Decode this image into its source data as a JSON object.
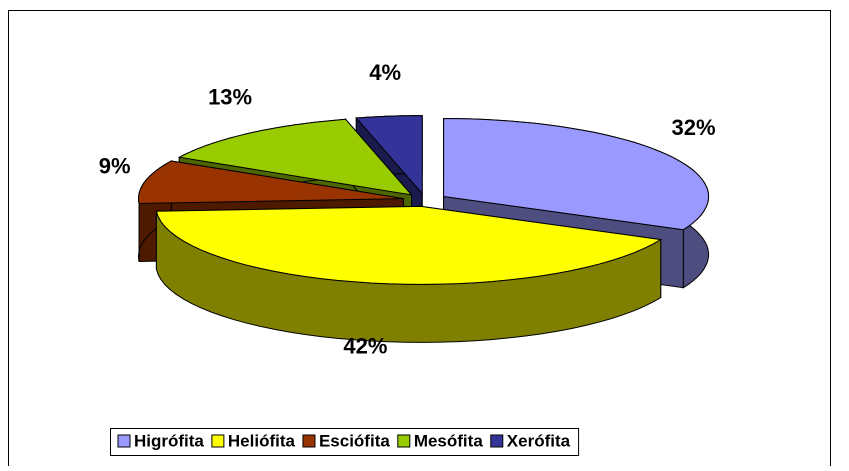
{
  "chart_data": {
    "type": "pie",
    "categories": [
      "Higrófita",
      "Heliófita",
      "Esciófita",
      "Mesófita",
      "Xerófita"
    ],
    "values": [
      32,
      42,
      9,
      13,
      4
    ],
    "value_labels": [
      "32%",
      "42%",
      "9%",
      "13%",
      "4%"
    ],
    "colors": [
      "#9999ff",
      "#ffff00",
      "#993300",
      "#99cc00",
      "#333399"
    ],
    "legend": "bottom"
  }
}
